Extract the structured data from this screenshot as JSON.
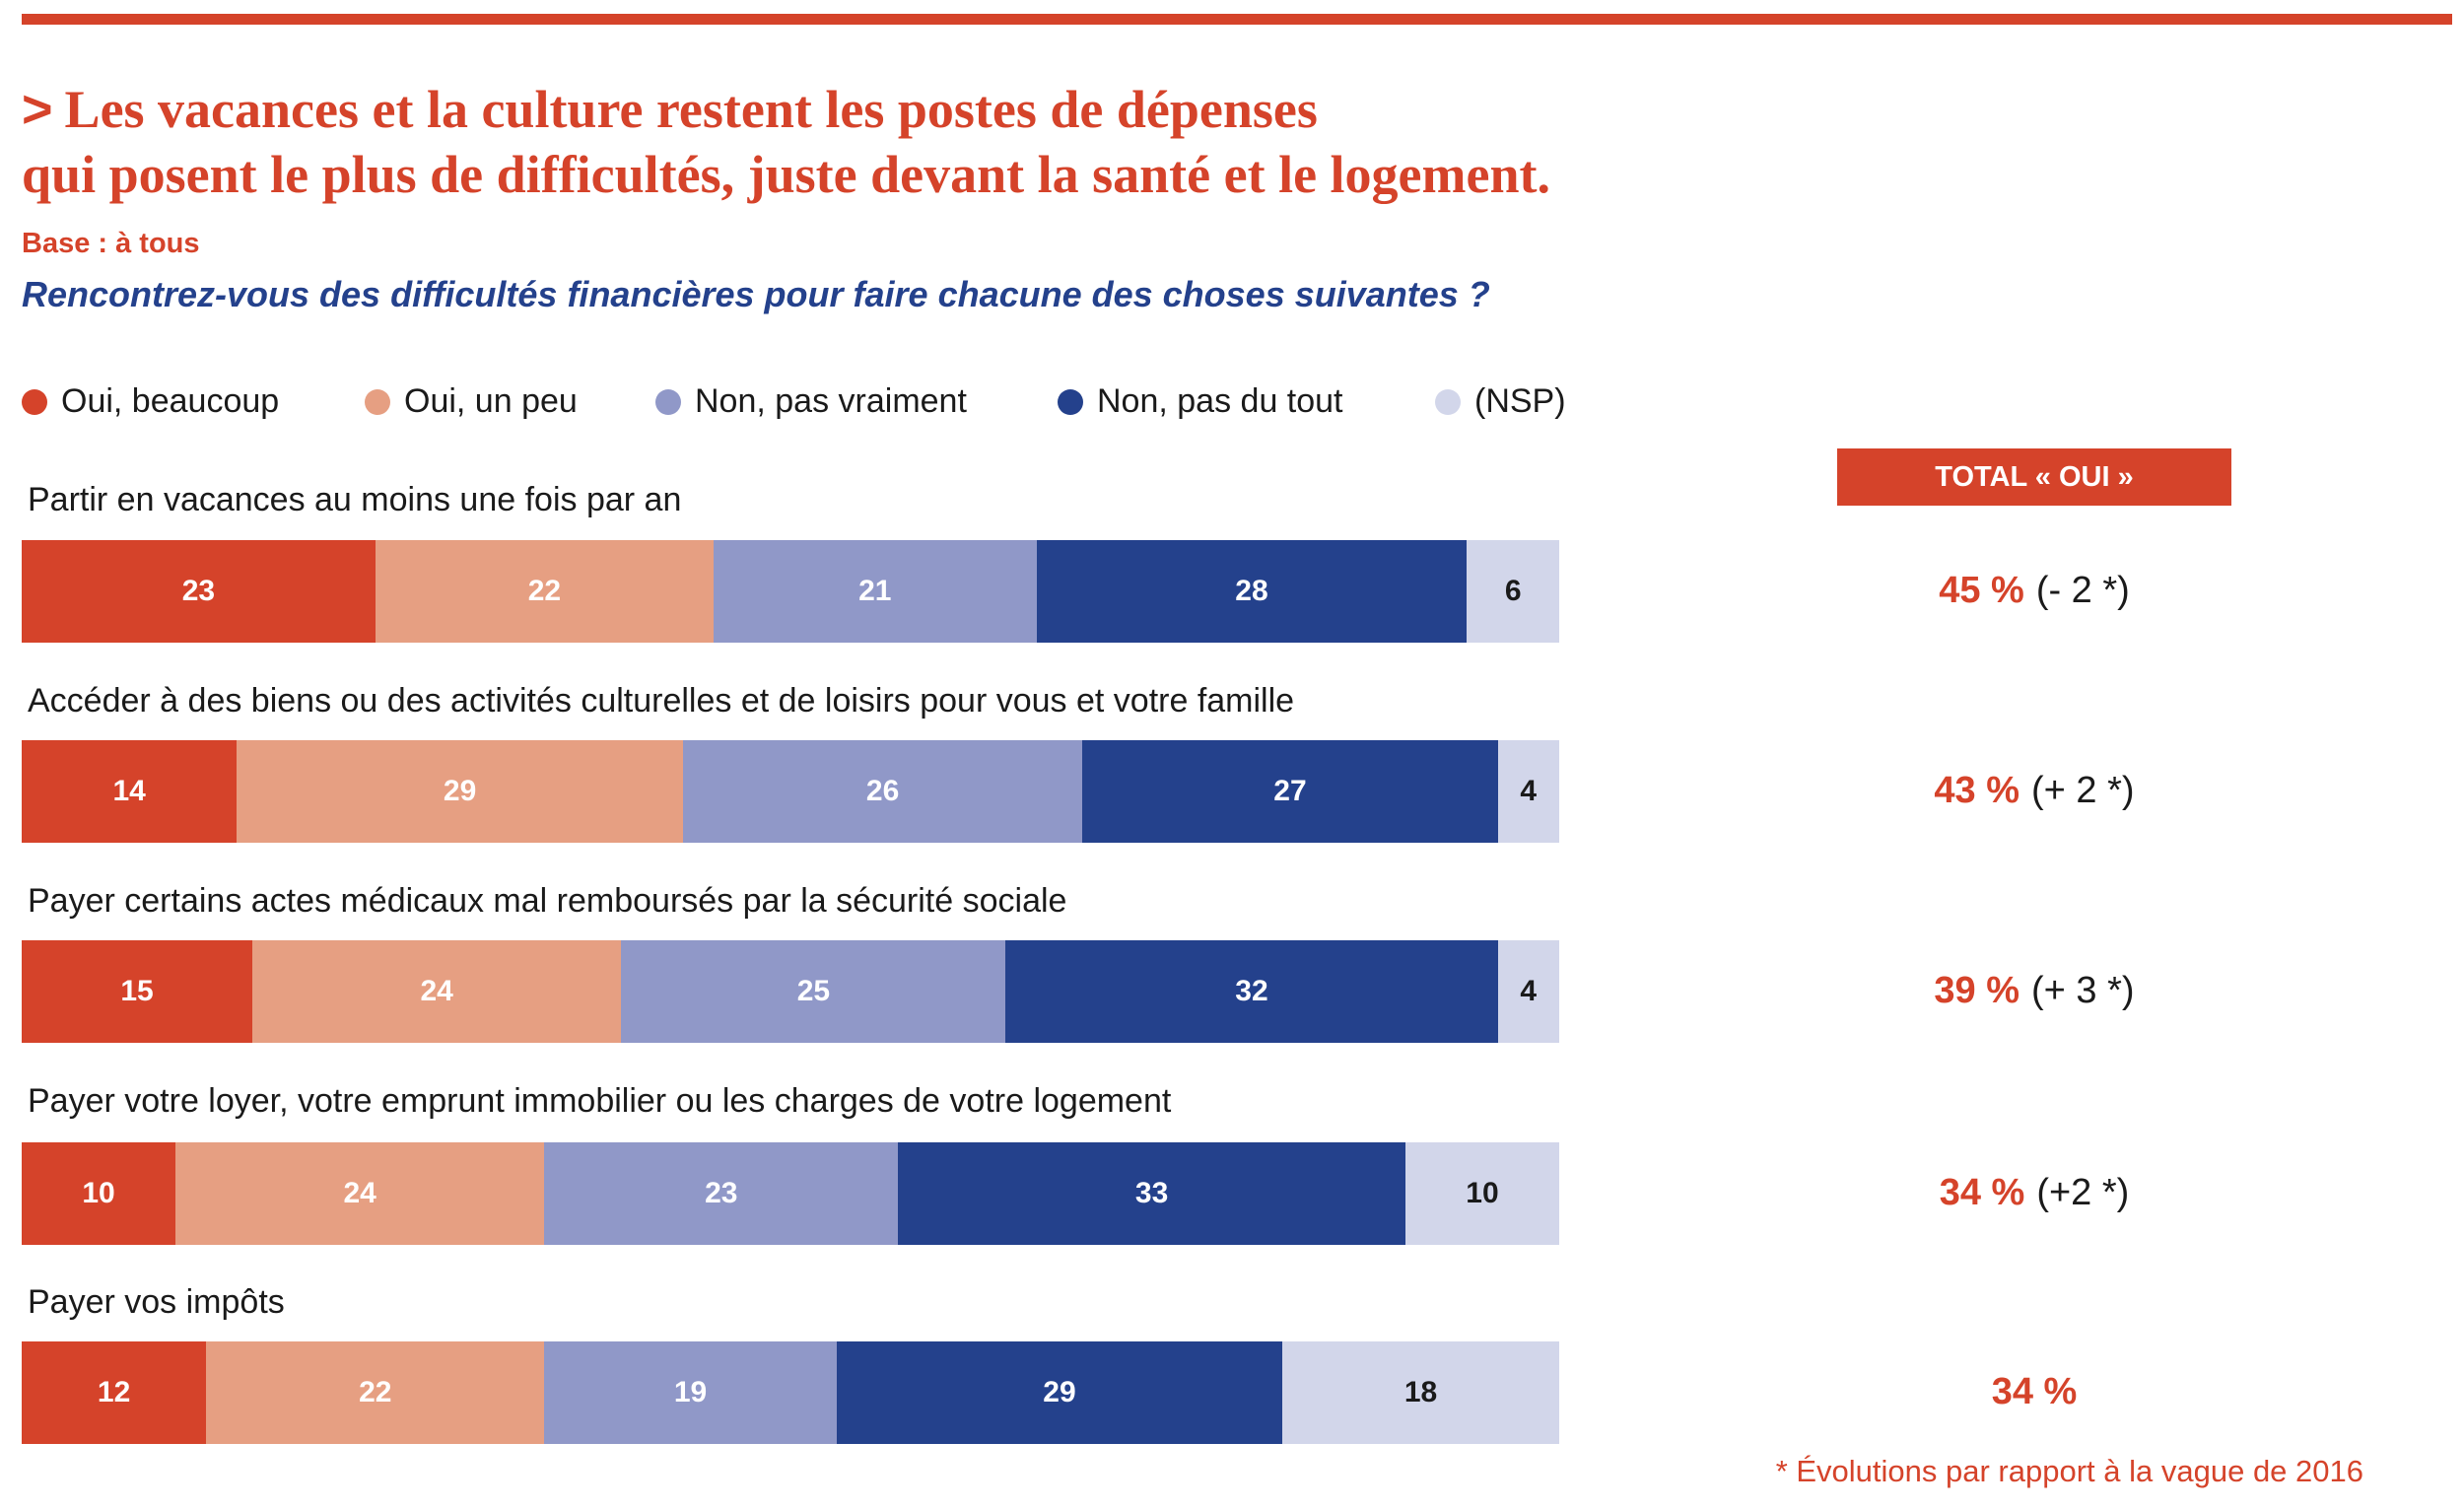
{
  "title_line1": "Les vacances et la culture restent les postes de dépenses",
  "title_line2": "qui posent le plus de difficultés, juste devant la santé et le logement.",
  "base": "Base : à tous",
  "question": "Rencontrez-vous des difficultés financières pour faire chacune des choses suivantes ?",
  "total_header": "TOTAL « OUI »",
  "footnote": "* Évolutions par rapport à la vague de 2016",
  "colors": {
    "oui_beaucoup": "#d5432a",
    "oui_un_peu": "#e69f82",
    "non_pas_vraiment": "#9098c8",
    "non_pas_du_tout": "#24418c",
    "nsp": "#d2d6ea",
    "accent": "#d5432a",
    "question": "#24418c"
  },
  "chart_data": {
    "type": "bar",
    "orientation": "horizontal",
    "stacked": true,
    "xlim": [
      0,
      100
    ],
    "categories": [
      "Partir en vacances au moins une fois par an",
      "Accéder à des biens ou des activités culturelles et de loisirs pour vous et votre famille",
      "Payer certains actes médicaux mal remboursés par la sécurité sociale",
      "Payer votre loyer, votre emprunt immobilier ou les charges de votre logement",
      "Payer vos impôts"
    ],
    "series": [
      {
        "name": "Oui, beaucoup",
        "color": "#d5432a",
        "values": [
          23,
          14,
          15,
          10,
          12
        ]
      },
      {
        "name": "Oui, un peu",
        "color": "#e69f82",
        "values": [
          22,
          29,
          24,
          24,
          22
        ]
      },
      {
        "name": "Non, pas vraiment",
        "color": "#9098c8",
        "values": [
          21,
          26,
          25,
          23,
          19
        ]
      },
      {
        "name": "Non, pas du tout",
        "color": "#24418c",
        "values": [
          28,
          27,
          32,
          33,
          29
        ]
      },
      {
        "name": "(NSP)",
        "color": "#d2d6ea",
        "values": [
          6,
          4,
          4,
          10,
          18
        ]
      }
    ],
    "totals_oui": [
      "45 %",
      "43 %",
      "39 %",
      "34 %",
      "34 %"
    ],
    "evolutions": [
      "(- 2 *)",
      "(+ 2 *)",
      "(+ 3 *)",
      "(+2 *)",
      ""
    ],
    "legend_position": "top",
    "grid": false
  }
}
